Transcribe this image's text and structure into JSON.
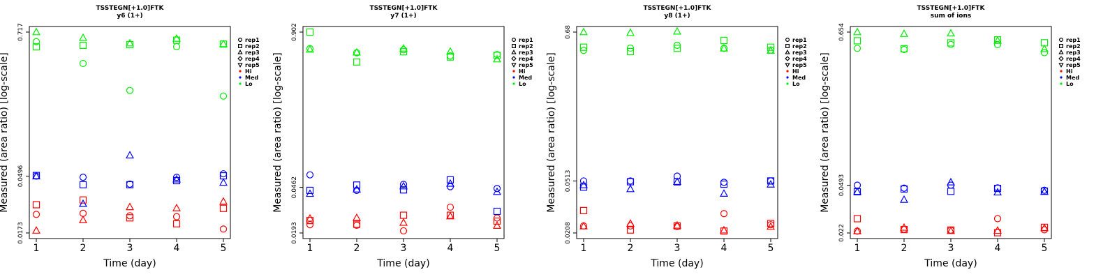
{
  "charts": [
    {
      "title": "TSSTEGN[+1.0]FTK",
      "subtitle": "y6 (1+)",
      "xlabel": "Time (day)",
      "ylabel": "Measured (area ratio) [log-scale]",
      "x_ticks": [
        "1",
        "2",
        "3",
        "4",
        "5"
      ],
      "y_ticks": [
        "0.0173",
        "0.0496",
        "0.717"
      ],
      "legend": {
        "shapes": [
          "rep1",
          "rep2",
          "rep3",
          "rep4",
          "rep5"
        ],
        "colors": [
          "Hi",
          "Med",
          "Lo"
        ]
      }
    },
    {
      "title": "TSSTEGN[+1.0]FTK",
      "subtitle": "y7 (1+)",
      "xlabel": "Time (day)",
      "ylabel": "Measured (area ratio) [log-scale]",
      "x_ticks": [
        "1",
        "2",
        "3",
        "4",
        "5"
      ],
      "y_ticks": [
        "0.0193",
        "0.0462",
        "0.902"
      ],
      "legend": {
        "shapes": [
          "rep1",
          "rep2",
          "rep3",
          "rep4",
          "rep5"
        ],
        "colors": [
          "Hi",
          "Med",
          "Lo"
        ]
      }
    },
    {
      "title": "TSSTEGN[+1.0]FTK",
      "subtitle": "y8 (1+)",
      "xlabel": "Time (day)",
      "ylabel": "Measured (area ratio) [log-scale]",
      "x_ticks": [
        "1",
        "2",
        "3",
        "4",
        "5"
      ],
      "y_ticks": [
        "0.0208",
        "0.0513",
        "0.68"
      ],
      "legend": {
        "shapes": [
          "rep1",
          "rep2",
          "rep3",
          "rep4",
          "rep5"
        ],
        "colors": [
          "Hi",
          "Med",
          "Lo"
        ]
      }
    },
    {
      "title": "TSSTEGN[+1.0]FTK",
      "subtitle": "sum of ions",
      "xlabel": "Time (day)",
      "ylabel": "Measured (area ratio) [log-scale]",
      "x_ticks": [
        "1",
        "2",
        "3",
        "4",
        "5"
      ],
      "y_ticks": [
        "0.022",
        "0.0493",
        "0.654"
      ],
      "legend": {
        "shapes": [
          "rep1",
          "rep2",
          "rep3",
          "rep4",
          "rep5"
        ],
        "colors": [
          "Hi",
          "Med",
          "Lo"
        ]
      }
    }
  ],
  "colors": {
    "Hi": "#ff0000",
    "Med": "#0000ff",
    "Lo": "#00ee00"
  },
  "chart_data": [
    {
      "type": "scatter",
      "title": "TSSTEGN[+1.0]FTK",
      "subtitle": "y6 (1+)",
      "xlabel": "Time (day)",
      "ylabel": "Measured (area ratio) [log-scale]",
      "y_scale": "log",
      "ylim": [
        0.0173,
        0.717
      ],
      "x": [
        1,
        2,
        3,
        4,
        5
      ],
      "series": [
        {
          "name": "Hi",
          "rep": "rep1",
          "shape": "circle",
          "values": [
            0.0244,
            0.0249,
            0.0238,
            0.0234,
            0.0186
          ]
        },
        {
          "name": "Hi",
          "rep": "rep2",
          "shape": "square",
          "values": [
            0.0292,
            0.0319,
            0.0229,
            0.0205,
            0.0273
          ]
        },
        {
          "name": "Hi",
          "rep": "rep3",
          "shape": "triangle",
          "values": [
            0.0181,
            0.022,
            0.028,
            0.0274,
            0.031
          ]
        },
        {
          "name": "Med",
          "rep": "rep1",
          "shape": "circle",
          "values": [
            0.0496,
            0.0486,
            0.0428,
            0.0485,
            0.0518
          ]
        },
        {
          "name": "Med",
          "rep": "rep2",
          "shape": "square",
          "values": [
            0.0502,
            0.0423,
            0.0423,
            0.0456,
            0.0499
          ]
        },
        {
          "name": "Med",
          "rep": "rep3",
          "shape": "triangle",
          "values": [
            0.0495,
            0.0297,
            0.073,
            0.0468,
            0.044
          ]
        },
        {
          "name": "Lo",
          "rep": "rep1",
          "shape": "circle",
          "values": [
            0.6,
            0.401,
            0.243,
            0.547,
            0.219
          ]
        },
        {
          "name": "Lo",
          "rep": "rep2",
          "shape": "square",
          "values": [
            0.545,
            0.561,
            0.568,
            0.617,
            0.574
          ]
        },
        {
          "name": "Lo",
          "rep": "rep3",
          "shape": "triangle",
          "values": [
            0.717,
            0.645,
            0.583,
            0.636,
            0.575
          ]
        }
      ]
    },
    {
      "type": "scatter",
      "title": "TSSTEGN[+1.0]FTK",
      "subtitle": "y7 (1+)",
      "xlabel": "Time (day)",
      "ylabel": "Measured (area ratio) [log-scale]",
      "y_scale": "log",
      "ylim": [
        0.0193,
        0.902
      ],
      "x": [
        1,
        2,
        3,
        4,
        5
      ],
      "series": [
        {
          "name": "Hi",
          "rep": "rep1",
          "shape": "circle",
          "values": [
            0.0226,
            0.0224,
            0.0201,
            0.0316,
            0.0257
          ]
        },
        {
          "name": "Hi",
          "rep": "rep2",
          "shape": "square",
          "values": [
            0.0245,
            0.0228,
            0.0271,
            0.0271,
            0.0242
          ]
        },
        {
          "name": "Hi",
          "rep": "rep3",
          "shape": "triangle",
          "values": [
            0.0255,
            0.0258,
            0.0235,
            0.0266,
            0.0222
          ]
        },
        {
          "name": "Med",
          "rep": "rep1",
          "shape": "circle",
          "values": [
            0.0587,
            0.0436,
            0.0489,
            0.0468,
            0.0452
          ]
        },
        {
          "name": "Med",
          "rep": "rep2",
          "shape": "square",
          "values": [
            0.0436,
            0.0483,
            0.044,
            0.0533,
            0.0292
          ]
        },
        {
          "name": "Med",
          "rep": "rep3",
          "shape": "triangle",
          "values": [
            0.0409,
            0.0445,
            0.0472,
            0.0497,
            0.0424
          ]
        },
        {
          "name": "Lo",
          "rep": "rep1",
          "shape": "circle",
          "values": [
            0.658,
            0.607,
            0.643,
            0.572,
            0.587
          ]
        },
        {
          "name": "Lo",
          "rep": "rep2",
          "shape": "square",
          "values": [
            0.902,
            0.509,
            0.619,
            0.56,
            0.577
          ]
        },
        {
          "name": "Lo",
          "rep": "rep3",
          "shape": "triangle",
          "values": [
            0.647,
            0.612,
            0.66,
            0.622,
            0.537
          ]
        }
      ]
    },
    {
      "type": "scatter",
      "title": "TSSTEGN[+1.0]FTK",
      "subtitle": "y8 (1+)",
      "xlabel": "Time (day)",
      "ylabel": "Measured (area ratio) [log-scale]",
      "y_scale": "log",
      "ylim": [
        0.0208,
        0.68
      ],
      "x": [
        1,
        2,
        3,
        4,
        5
      ],
      "series": [
        {
          "name": "Hi",
          "rep": "rep1",
          "shape": "circle",
          "values": [
            0.0235,
            0.0235,
            0.0233,
            0.0291,
            0.024
          ]
        },
        {
          "name": "Hi",
          "rep": "rep2",
          "shape": "square",
          "values": [
            0.0307,
            0.0219,
            0.0235,
            0.0215,
            0.0245
          ]
        },
        {
          "name": "Hi",
          "rep": "rep3",
          "shape": "triangle",
          "values": [
            0.0234,
            0.0245,
            0.0237,
            0.0218,
            0.0232
          ]
        },
        {
          "name": "Med",
          "rep": "rep1",
          "shape": "circle",
          "values": [
            0.0513,
            0.0513,
            0.0558,
            0.0501,
            0.0513
          ]
        },
        {
          "name": "Med",
          "rep": "rep2",
          "shape": "square",
          "values": [
            0.0461,
            0.0506,
            0.0505,
            0.0485,
            0.0513
          ]
        },
        {
          "name": "Med",
          "rep": "rep3",
          "shape": "triangle",
          "values": [
            0.0477,
            0.0446,
            0.0506,
            0.0412,
            0.0483
          ]
        },
        {
          "name": "Lo",
          "rep": "rep1",
          "shape": "circle",
          "values": [
            0.495,
            0.515,
            0.541,
            0.513,
            0.498
          ]
        },
        {
          "name": "Lo",
          "rep": "rep2",
          "shape": "square",
          "values": [
            0.523,
            0.485,
            0.513,
            0.588,
            0.523
          ]
        },
        {
          "name": "Lo",
          "rep": "rep3",
          "shape": "triangle",
          "values": [
            0.68,
            0.672,
            0.688,
            0.513,
            0.493
          ]
        }
      ]
    },
    {
      "type": "scatter",
      "title": "TSSTEGN[+1.0]FTK",
      "subtitle": "sum of ions",
      "xlabel": "Time (day)",
      "ylabel": "Measured (area ratio) [log-scale]",
      "y_scale": "log",
      "ylim": [
        0.022,
        0.654
      ],
      "x": [
        1,
        2,
        3,
        4,
        5
      ],
      "series": [
        {
          "name": "Hi",
          "rep": "rep1",
          "shape": "circle",
          "values": [
            0.0227,
            0.0234,
            0.0231,
            0.028,
            0.0232
          ]
        },
        {
          "name": "Hi",
          "rep": "rep2",
          "shape": "square",
          "values": [
            0.028,
            0.0233,
            0.0231,
            0.0221,
            0.0242
          ]
        },
        {
          "name": "Hi",
          "rep": "rep3",
          "shape": "triangle",
          "values": [
            0.0227,
            0.0241,
            0.0228,
            0.0229,
            0.0239
          ]
        },
        {
          "name": "Med",
          "rep": "rep1",
          "shape": "circle",
          "values": [
            0.0493,
            0.0469,
            0.0493,
            0.0471,
            0.0453
          ]
        },
        {
          "name": "Med",
          "rep": "rep2",
          "shape": "square",
          "values": [
            0.0441,
            0.0462,
            0.0444,
            0.0467,
            0.0446
          ]
        },
        {
          "name": "Med",
          "rep": "rep3",
          "shape": "triangle",
          "values": [
            0.0441,
            0.0386,
            0.0518,
            0.0437,
            0.0441
          ]
        },
        {
          "name": "Lo",
          "rep": "rep1",
          "shape": "circle",
          "values": [
            0.497,
            0.487,
            0.531,
            0.53,
            0.462
          ]
        },
        {
          "name": "Lo",
          "rep": "rep2",
          "shape": "square",
          "values": [
            0.565,
            0.494,
            0.545,
            0.574,
            0.546
          ]
        },
        {
          "name": "Lo",
          "rep": "rep3",
          "shape": "triangle",
          "values": [
            0.654,
            0.635,
            0.64,
            0.566,
            0.492
          ]
        }
      ]
    }
  ]
}
